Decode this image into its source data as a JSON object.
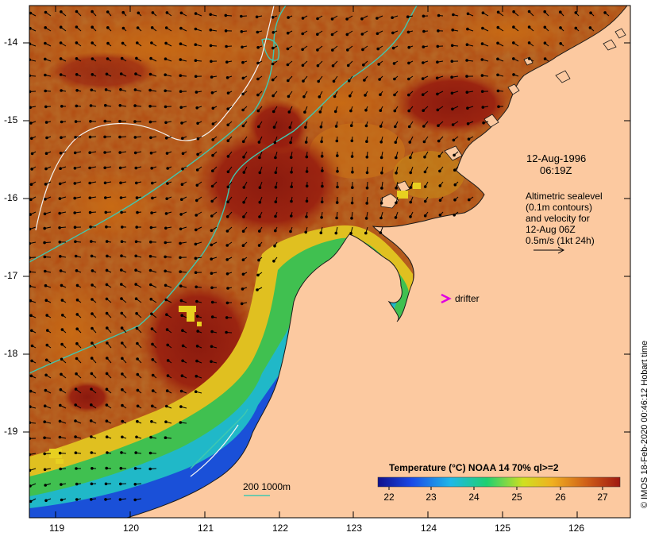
{
  "map": {
    "date": "12-Aug-1996",
    "time": "06:19Z",
    "legend_lines": [
      "Altimetric sealevel",
      "(0.1m contours)",
      "and velocity for",
      "12-Aug 06Z",
      "0.5m/s (1kt 24h)"
    ],
    "drifter_label": "drifter",
    "contour_scale_label": "200  1000m",
    "credit": "© IMOS 18-Feb-2020 00:46:12 Hobart time",
    "colorbar": {
      "title": "Temperature (°C) NOAA 14 70% ql>=2",
      "ticks": [
        "22",
        "23",
        "24",
        "25",
        "26",
        "27"
      ],
      "colors": [
        "#10108c",
        "#1a4ae8",
        "#20b8e8",
        "#20d070",
        "#d0e020",
        "#f0b020",
        "#d06018",
        "#a01810"
      ]
    },
    "longitude_ticks": [
      "119",
      "120",
      "121",
      "122",
      "123",
      "124",
      "125",
      "126"
    ],
    "latitude_ticks": [
      "-14",
      "-15",
      "-16",
      "-17",
      "-18",
      "-19"
    ],
    "colors": {
      "land": "#fcc9a0",
      "warm_water": "#b24a10",
      "hot_water": "#8e1a0e",
      "coastal_cool": "#30c060",
      "isobath": "#40c8b0",
      "drifter": "#e000e0"
    }
  }
}
